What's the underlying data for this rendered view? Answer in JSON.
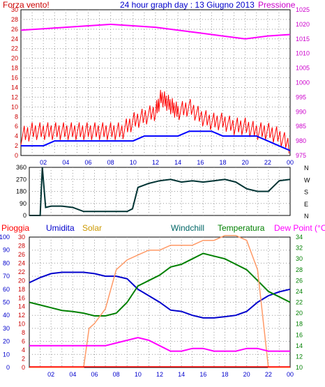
{
  "header": {
    "title": "24 hour graph day : 13 Giugno 2013",
    "left_label": "Forza vento!",
    "right_label": "Pressione"
  },
  "legend": {
    "pioggia": "Pioggia",
    "umidita": "Umidita",
    "solar": "Solar",
    "windchill": "Windchill",
    "temperatura": "Temperatura",
    "dewpoint": "Dew Point (°C)"
  },
  "colors": {
    "wind_gust": "#ff0000",
    "wind_avg": "#0000ff",
    "pressure": "#ff00ff",
    "direction": "#003333",
    "umidita": "#0000cc",
    "solar": "#ff9966",
    "windchill": "#006666",
    "temperatura": "#008000",
    "dewpoint": "#ff00ff",
    "pioggia": "#ff0000",
    "axis_left": "#cc0000",
    "axis_right": "#cc00cc",
    "axis_blue": "#0000cc",
    "axis_green": "#008000",
    "axis_solar": "#cc9900",
    "title": "#0000cc"
  },
  "chart_data": [
    {
      "type": "line",
      "name": "wind-pressure",
      "x_ticks": [
        "02",
        "04",
        "06",
        "08",
        "10",
        "12",
        "14",
        "16",
        "18",
        "20",
        "22",
        "00"
      ],
      "y_left_ticks": [
        "0",
        "2",
        "4",
        "6",
        "8",
        "10",
        "12",
        "14",
        "16",
        "18",
        "20",
        "22",
        "24",
        "26",
        "28",
        "30"
      ],
      "y_right_ticks": [
        "975",
        "980",
        "985",
        "990",
        "995",
        "1000",
        "1005",
        "1010",
        "1015",
        "1020",
        "1025"
      ],
      "ylim_left": [
        0,
        30
      ],
      "ylim_right": [
        975,
        1025
      ],
      "series": [
        {
          "key": "wind_gust",
          "x": [
            0,
            1,
            2,
            3,
            4,
            5,
            6,
            7,
            8,
            9,
            10,
            11,
            12,
            12.5,
            13,
            13.5,
            14,
            15,
            16,
            17,
            18,
            19,
            20,
            21,
            22,
            23,
            24
          ],
          "y": [
            4,
            5,
            5,
            5,
            5,
            5,
            5,
            5,
            5,
            5,
            7,
            8,
            9,
            12,
            11,
            10,
            9,
            10,
            8,
            7,
            7,
            6,
            6,
            5,
            5,
            4,
            2
          ]
        },
        {
          "key": "wind_avg",
          "x": [
            0,
            1,
            2,
            3,
            4,
            5,
            6,
            7,
            8,
            9,
            10,
            11,
            12,
            13,
            14,
            15,
            16,
            17,
            18,
            19,
            20,
            21,
            22,
            23,
            24
          ],
          "y": [
            2,
            2,
            2,
            3,
            3,
            3,
            3,
            3,
            3,
            3,
            3,
            4,
            4,
            4,
            4,
            5,
            5,
            5,
            4,
            4,
            4,
            4,
            3,
            2,
            1
          ]
        },
        {
          "key": "pressure",
          "x": [
            0,
            2,
            4,
            6,
            8,
            10,
            12,
            14,
            16,
            18,
            20,
            22,
            24
          ],
          "y": [
            1018,
            1018.5,
            1019,
            1019.5,
            1020,
            1019.5,
            1019,
            1018,
            1017,
            1016,
            1015,
            1016,
            1016.5
          ]
        }
      ]
    },
    {
      "type": "line",
      "name": "wind-direction",
      "y_ticks": [
        "0",
        "90",
        "180",
        "270",
        "360"
      ],
      "compass": [
        "N",
        "W",
        "S",
        "E",
        "N"
      ],
      "ylim": [
        0,
        360
      ],
      "series": [
        {
          "key": "direction",
          "x": [
            0,
            1,
            1.2,
            1.5,
            2,
            3,
            4,
            5,
            6,
            7,
            8,
            9,
            9.5,
            10,
            11,
            12,
            13,
            14,
            15,
            16,
            17,
            18,
            19,
            20,
            21,
            22,
            23,
            24
          ],
          "y": [
            0,
            0,
            360,
            60,
            70,
            70,
            60,
            30,
            30,
            30,
            30,
            30,
            50,
            210,
            240,
            260,
            270,
            250,
            260,
            250,
            260,
            270,
            250,
            200,
            180,
            180,
            260,
            270
          ]
        }
      ]
    },
    {
      "type": "line",
      "name": "temperature-humidity",
      "y_pioggia_ticks": [
        "0",
        "10",
        "20",
        "30",
        "40",
        "50",
        "60",
        "70",
        "80",
        "90",
        "100"
      ],
      "y_umidita_ticks": [
        "0",
        "2",
        "4",
        "6",
        "8",
        "10",
        "12",
        "14",
        "16",
        "18",
        "20",
        "22",
        "24",
        "26",
        "28",
        "30"
      ],
      "y_right_ticks": [
        "10",
        "12",
        "14",
        "16",
        "18",
        "20",
        "22",
        "24",
        "26",
        "28",
        "30",
        "32",
        "34"
      ],
      "ylim_temp": [
        10,
        34
      ],
      "ylim_humidity": [
        0,
        100
      ],
      "series": [
        {
          "key": "umidita",
          "x": [
            0,
            1,
            2,
            3,
            4,
            5,
            6,
            7,
            8,
            9,
            10,
            11,
            12,
            13,
            14,
            15,
            16,
            17,
            18,
            19,
            20,
            21,
            22,
            23,
            24
          ],
          "y": [
            65,
            69,
            72,
            73,
            73,
            73,
            72,
            70,
            70,
            68,
            60,
            55,
            50,
            44,
            43,
            40,
            38,
            38,
            39,
            40,
            43,
            50,
            55,
            58,
            60
          ]
        },
        {
          "key": "temperatura",
          "x": [
            0,
            1,
            2,
            3,
            4,
            5,
            6,
            7,
            8,
            9,
            10,
            11,
            12,
            13,
            14,
            15,
            16,
            17,
            18,
            19,
            20,
            21,
            22,
            23,
            24
          ],
          "y": [
            22,
            21.5,
            21,
            20.5,
            20.3,
            20,
            19.5,
            19.5,
            20,
            22,
            25,
            26,
            27,
            28.5,
            29,
            30,
            31,
            30.5,
            30,
            29,
            28,
            26,
            24,
            23,
            22
          ]
        },
        {
          "key": "solar",
          "x": [
            0,
            1,
            2,
            3,
            4,
            5,
            5.5,
            6,
            7,
            8,
            9,
            10,
            11,
            12,
            13,
            14,
            15,
            16,
            17,
            18,
            19,
            20,
            21,
            22,
            23,
            24
          ],
          "y": [
            0,
            0,
            0,
            0,
            0,
            0,
            8,
            9,
            12,
            20,
            22,
            23,
            24,
            24,
            25,
            25,
            25,
            26,
            26,
            27,
            27,
            26,
            20,
            0,
            0,
            0
          ]
        },
        {
          "key": "dewpoint",
          "x": [
            0,
            1,
            2,
            3,
            4,
            5,
            6,
            7,
            8,
            9,
            10,
            11,
            12,
            13,
            14,
            15,
            16,
            17,
            18,
            19,
            20,
            21,
            22,
            23,
            24
          ],
          "y": [
            14,
            14,
            14,
            14,
            14,
            14,
            14,
            14,
            14.5,
            15,
            15.5,
            15,
            14,
            13,
            13,
            13.5,
            13.5,
            13,
            13,
            13,
            13.5,
            13.5,
            13,
            13,
            13
          ]
        }
      ]
    }
  ]
}
